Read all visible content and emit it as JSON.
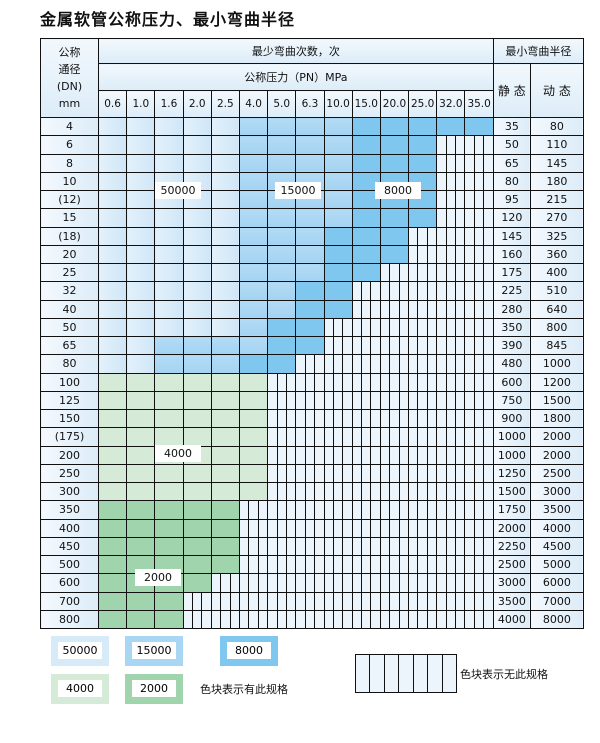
{
  "title": "金属软管公称压力、最小弯曲半径",
  "header": {
    "dn_label": [
      "公称",
      "通径",
      "(DN)",
      "mm"
    ],
    "bend_count_label": "最少弯曲次数，次",
    "pressure_label": "公称压力（PN）MPa",
    "radius_label": "最小弯曲半径",
    "static_label": "静 态",
    "dynamic_label": "动 态",
    "pressures": [
      "0.6",
      "1.0",
      "1.6",
      "2.0",
      "2.5",
      "4.0",
      "5.0",
      "6.3",
      "10.0",
      "15.0",
      "20.0",
      "25.0",
      "32.0",
      "35.0"
    ]
  },
  "zone_colors": {
    "L": "#d6eaf8",
    "M": "#a9d6f3",
    "D": "#7fc7ee",
    "G": "#d5ebd8",
    "H": "#9fd4ad",
    "blank": "#ecf4fc"
  },
  "rows": [
    {
      "dn": "4",
      "static": "35",
      "dynamic": "80",
      "cells": "LLLLLMMMMDDDDD"
    },
    {
      "dn": "6",
      "static": "50",
      "dynamic": "110",
      "cells": "LLLLLMMMMDDD.."
    },
    {
      "dn": "8",
      "static": "65",
      "dynamic": "145",
      "cells": "LLLLLMMMMDDD.."
    },
    {
      "dn": "10",
      "static": "80",
      "dynamic": "180",
      "cells": "LLLLLMMMMDDD.."
    },
    {
      "dn": "(12)",
      "static": "95",
      "dynamic": "215",
      "cells": "LLLLLMMMMDDD.."
    },
    {
      "dn": "15",
      "static": "120",
      "dynamic": "270",
      "cells": "LLLLLMMMMDDD.."
    },
    {
      "dn": "(18)",
      "static": "145",
      "dynamic": "325",
      "cells": "LLLLLMMMDDD..."
    },
    {
      "dn": "20",
      "static": "160",
      "dynamic": "360",
      "cells": "LLLLLMMMDDD..."
    },
    {
      "dn": "25",
      "static": "175",
      "dynamic": "400",
      "cells": "LLLLLMMMDD...."
    },
    {
      "dn": "32",
      "static": "225",
      "dynamic": "510",
      "cells": "LLLLLMMDD....."
    },
    {
      "dn": "40",
      "static": "280",
      "dynamic": "640",
      "cells": "LLLLLMMDD....."
    },
    {
      "dn": "50",
      "static": "350",
      "dynamic": "800",
      "cells": "LLLLLMDD......"
    },
    {
      "dn": "65",
      "static": "390",
      "dynamic": "845",
      "cells": "LLMMMMDD......"
    },
    {
      "dn": "80",
      "static": "480",
      "dynamic": "1000",
      "cells": "LLMMMDD......."
    },
    {
      "dn": "100",
      "static": "600",
      "dynamic": "1200",
      "cells": "GGGGGG........"
    },
    {
      "dn": "125",
      "static": "750",
      "dynamic": "1500",
      "cells": "GGGGGG........"
    },
    {
      "dn": "150",
      "static": "900",
      "dynamic": "1800",
      "cells": "GGGGGG........"
    },
    {
      "dn": "(175)",
      "static": "1000",
      "dynamic": "2000",
      "cells": "GGGGGG........"
    },
    {
      "dn": "200",
      "static": "1000",
      "dynamic": "2000",
      "cells": "GGGGGG........"
    },
    {
      "dn": "250",
      "static": "1250",
      "dynamic": "2500",
      "cells": "GGGGGG........"
    },
    {
      "dn": "300",
      "static": "1500",
      "dynamic": "3000",
      "cells": "GGGGGG........"
    },
    {
      "dn": "350",
      "static": "1750",
      "dynamic": "3500",
      "cells": "HHHHH........."
    },
    {
      "dn": "400",
      "static": "2000",
      "dynamic": "4000",
      "cells": "HHHHH........."
    },
    {
      "dn": "450",
      "static": "2250",
      "dynamic": "4500",
      "cells": "HHHHH........."
    },
    {
      "dn": "500",
      "static": "2500",
      "dynamic": "5000",
      "cells": "HHHHH........."
    },
    {
      "dn": "600",
      "static": "3000",
      "dynamic": "6000",
      "cells": "HHHH.........."
    },
    {
      "dn": "700",
      "static": "3500",
      "dynamic": "7000",
      "cells": "HHH..........."
    },
    {
      "dn": "800",
      "static": "4000",
      "dynamic": "8000",
      "cells": "HHH..........."
    }
  ],
  "zone_labels": {
    "L": "50000",
    "M": "15000",
    "D": "8000",
    "G": "4000",
    "H": "2000"
  },
  "legend": {
    "items": [
      {
        "zone": "L",
        "label": "50000"
      },
      {
        "zone": "M",
        "label": "15000"
      },
      {
        "zone": "D",
        "label": "8000"
      },
      {
        "zone": "G",
        "label": "4000"
      },
      {
        "zone": "H",
        "label": "2000"
      }
    ],
    "colored_text": "色块表示有此规格",
    "blank_text": "色块表示无此规格"
  }
}
